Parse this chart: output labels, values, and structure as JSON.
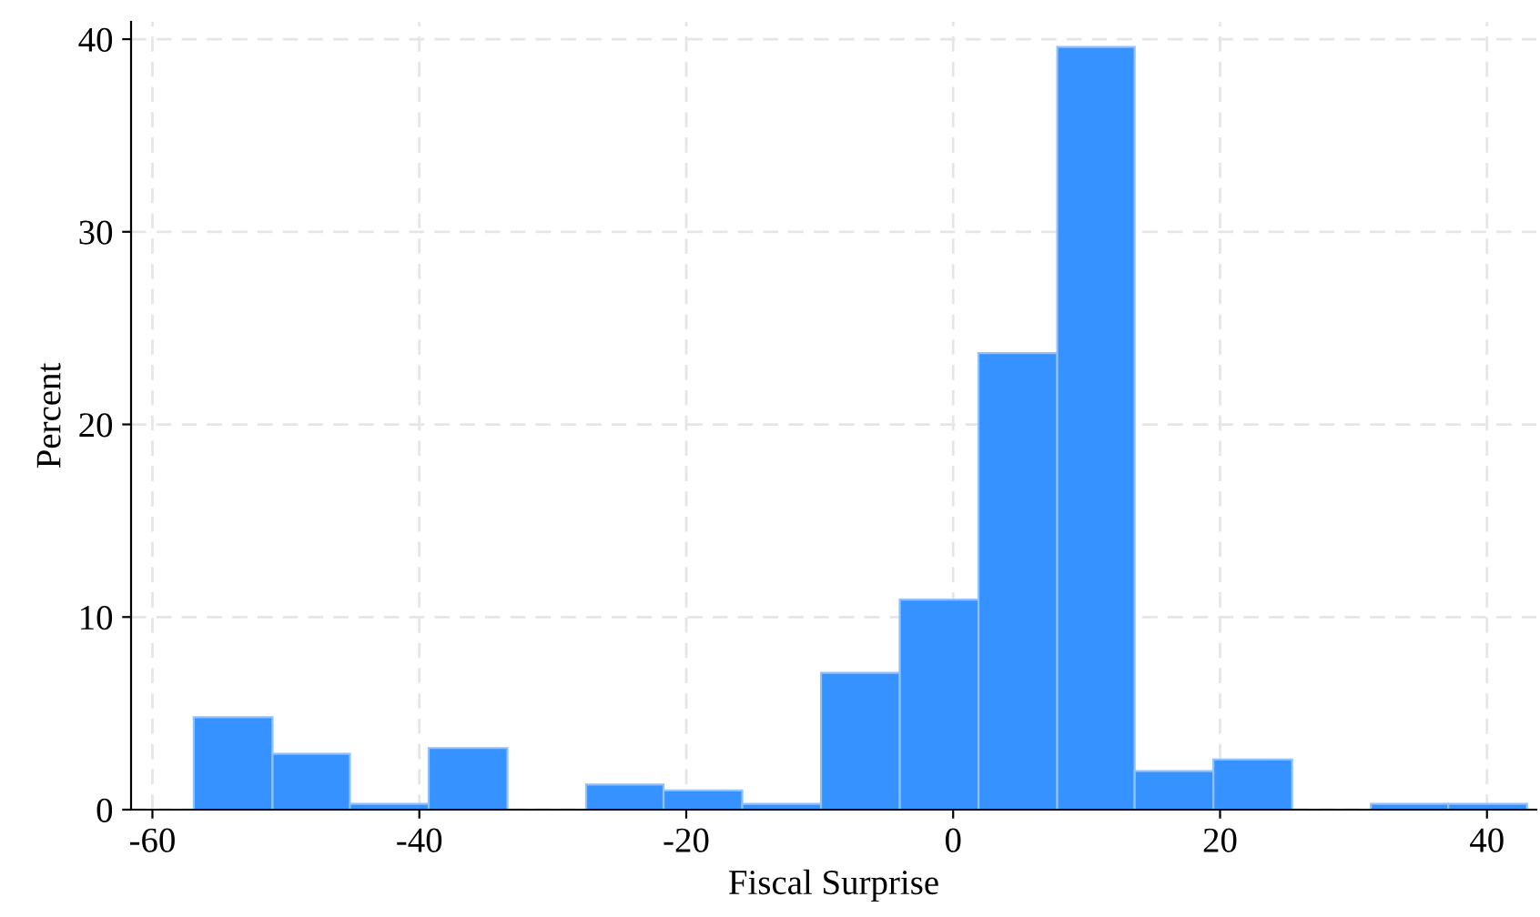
{
  "chart_data": {
    "type": "histogram",
    "xlabel": "Fiscal Surprise",
    "ylabel": "Percent",
    "bins": [
      -56.9,
      -51.0,
      -45.2,
      -39.3,
      -33.4,
      -27.5,
      -21.7,
      -15.8,
      -9.9,
      -4.0,
      1.9,
      7.8,
      13.6,
      19.5,
      25.4,
      31.3,
      37.1,
      43.0
    ],
    "values": [
      4.8,
      2.9,
      0.3,
      3.2,
      0,
      1.3,
      1.0,
      0.3,
      7.1,
      10.9,
      23.7,
      39.6,
      2.0,
      2.6,
      0,
      0.3,
      0.3
    ],
    "color": "#3592fe",
    "xlim": [
      -61.6,
      43.7
    ],
    "ylim": [
      0,
      40.9
    ],
    "xticks": [
      -60,
      -40,
      -20,
      0,
      20,
      40
    ],
    "yticks": [
      0,
      10,
      20,
      30,
      40
    ],
    "grid": true
  }
}
